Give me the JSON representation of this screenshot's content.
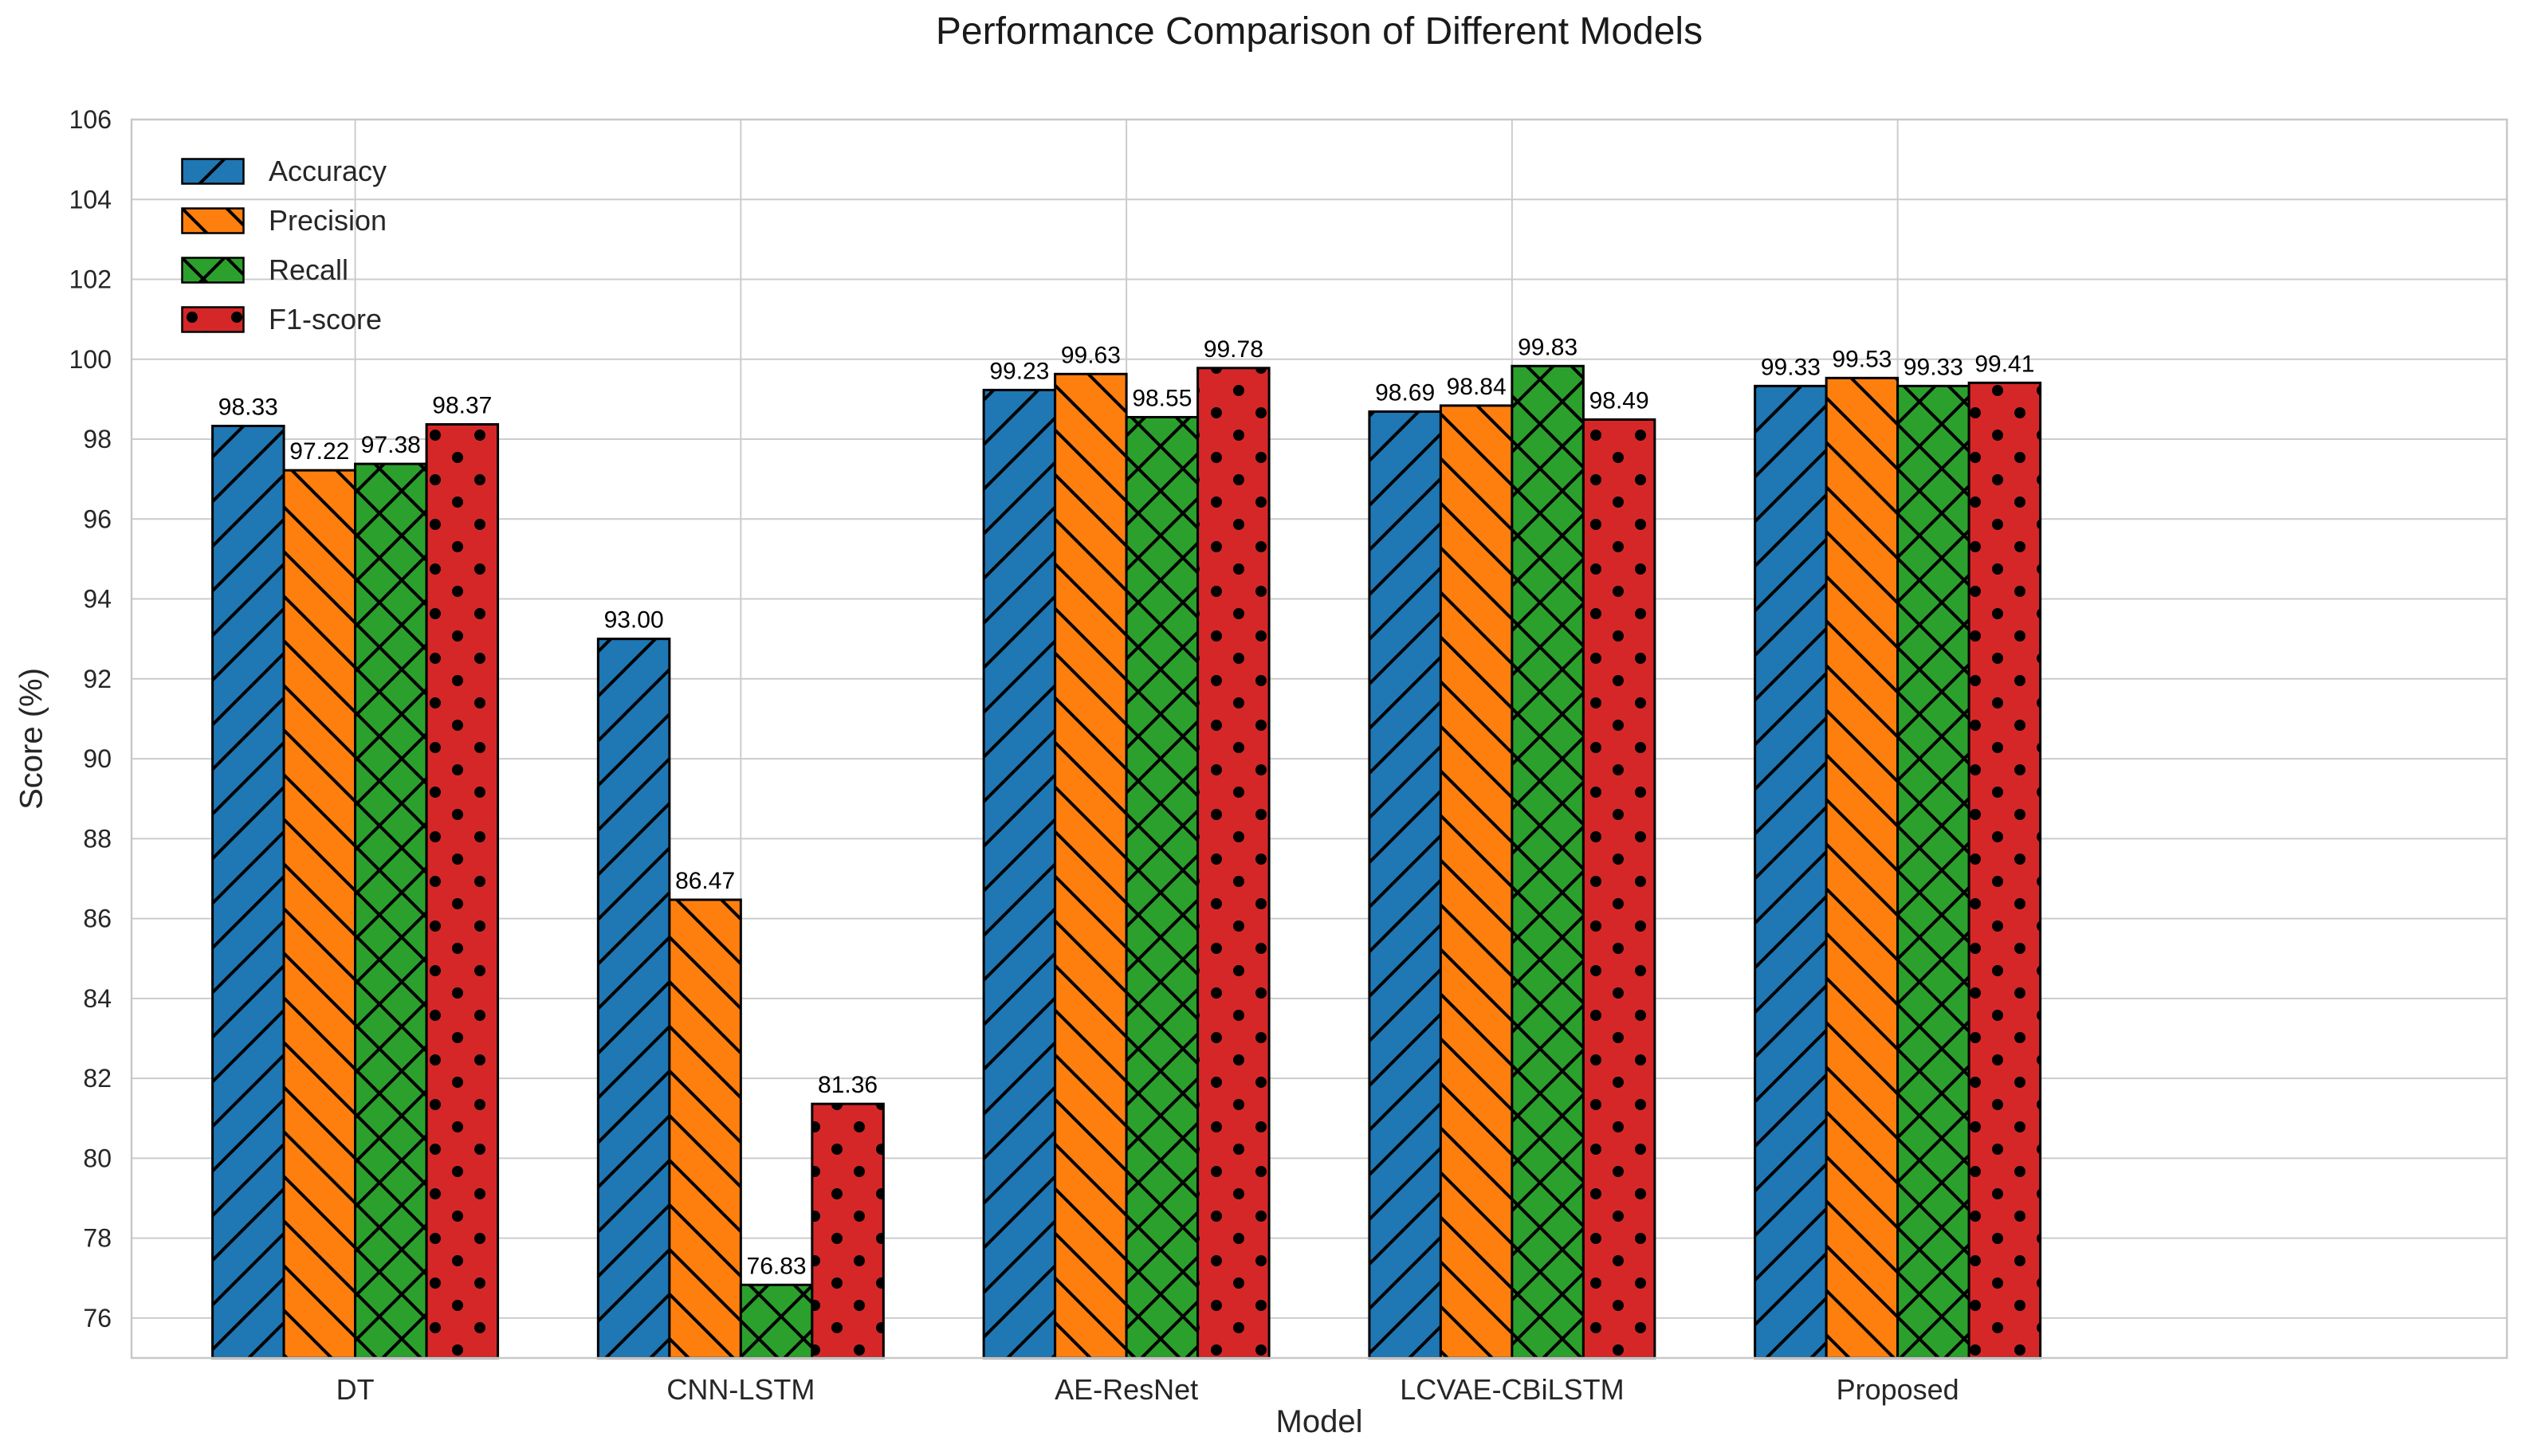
{
  "chart_data": {
    "type": "bar",
    "title": "Performance Comparison of Different Models",
    "xlabel": "Model",
    "ylabel": "Score (%)",
    "categories": [
      "DT",
      "CNN-LSTM",
      "AE-ResNet",
      "LCVAE-CBiLSTM",
      "Proposed"
    ],
    "series": [
      {
        "name": "Accuracy",
        "color": "#1f77b4",
        "hatch": "/",
        "values": [
          98.33,
          93.0,
          99.23,
          98.69,
          99.33
        ]
      },
      {
        "name": "Precision",
        "color": "#ff7f0e",
        "hatch": "\\",
        "values": [
          97.22,
          86.47,
          99.63,
          98.84,
          99.53
        ]
      },
      {
        "name": "Recall",
        "color": "#2ca02c",
        "hatch": "x",
        "values": [
          97.38,
          76.83,
          98.55,
          99.83,
          99.33
        ]
      },
      {
        "name": "F1-score",
        "color": "#d62728",
        "hatch": ".",
        "values": [
          98.37,
          81.36,
          99.78,
          98.49,
          99.41
        ]
      }
    ],
    "value_label_format": "2dp",
    "ylim": [
      75,
      106
    ],
    "yticks": [
      76,
      78,
      80,
      82,
      84,
      86,
      88,
      90,
      92,
      94,
      96,
      98,
      100,
      102,
      104,
      106
    ],
    "grid": true,
    "legend_position": "upper left",
    "colors": {
      "grid": "#cccccc",
      "frame": "#c8c8c8",
      "bar_edge": "#000000",
      "tick_text": "#262626",
      "value_text": "#000000"
    }
  }
}
